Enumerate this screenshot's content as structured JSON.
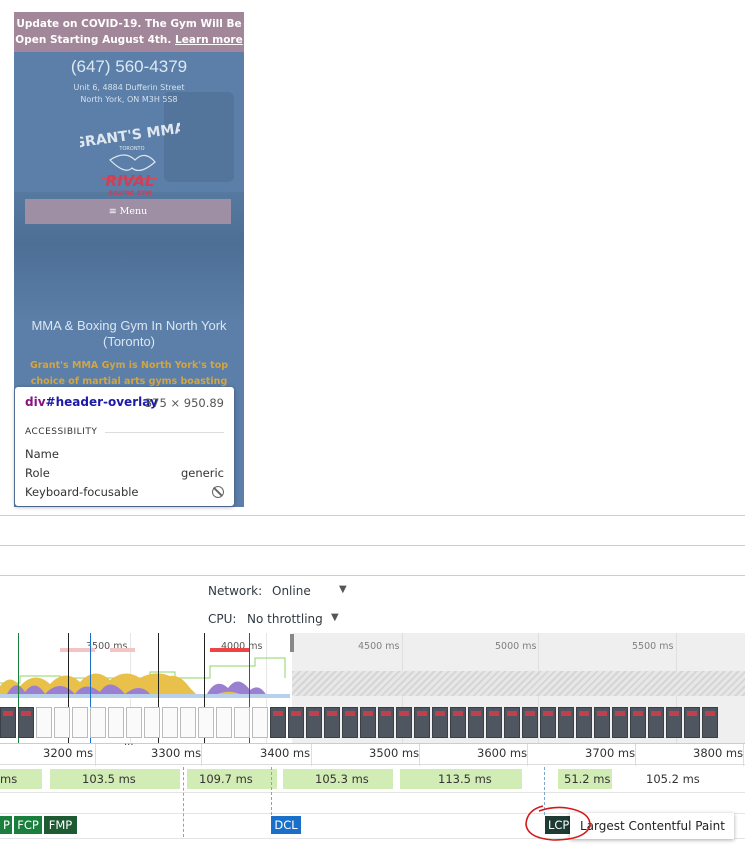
{
  "preview": {
    "banner_text": "Update on COVID-19. The Gym Will Be Open Starting August 4th.",
    "banner_link": "Learn more",
    "phone": "(647) 560-4379",
    "address_line1": "Unit 6, 4884 Dufferin Street",
    "address_line2": "North York, ON M3H 5S8",
    "logo_top": "GRANT'S MMA",
    "logo_mid": "TORONTO",
    "logo_brand": "RIVAL",
    "logo_sub": "BOXING GYM",
    "menu_label": "≡ Menu",
    "hero_title": "MMA & Boxing Gym In North York (Toronto)",
    "hero_text": "Grant's MMA Gym is North York's top choice of martial arts gyms boasting"
  },
  "tooltip": {
    "tag": "div",
    "id": "#header-overlay",
    "dims": "375 × 950.89",
    "section": "ACCESSIBILITY",
    "rows": [
      {
        "label": "Name",
        "value": ""
      },
      {
        "label": "Role",
        "value": "generic"
      },
      {
        "label": "Keyboard-focusable",
        "value": ""
      }
    ]
  },
  "toolbar": {
    "network_label": "Network:",
    "network_value": "Online",
    "cpu_label": "CPU:",
    "cpu_value": "No throttling",
    "dropdown_arrow": "▼"
  },
  "overview": {
    "ticks": [
      "3500 ms",
      "4000 ms",
      "4500 ms",
      "5000 ms",
      "5500 ms"
    ]
  },
  "ruler": {
    "ticks": [
      "3200 ms",
      "3300 ms",
      "3400 ms",
      "3500 ms",
      "3600 ms",
      "3700 ms",
      "3800 ms"
    ],
    "dots": "..."
  },
  "frames": {
    "durations": [
      "ms",
      "103.5 ms",
      "109.7 ms",
      "105.3 ms",
      "113.5 ms",
      "51.2 ms",
      "105.2 ms"
    ]
  },
  "markers": {
    "p": "P",
    "fcp": "FCP",
    "fmp": "FMP",
    "dcl": "DCL",
    "lcp": "LCP",
    "lcp_tooltip": "Largest Contentful Paint"
  },
  "colors": {
    "fcp_green": "#1a7f3c",
    "fmp_green": "#1e5a32",
    "dcl_blue": "#1a6fc9",
    "lcp_dark": "#1d3b33",
    "frame_green": "#d2ecb5",
    "annotation_red": "#d11a1a"
  }
}
